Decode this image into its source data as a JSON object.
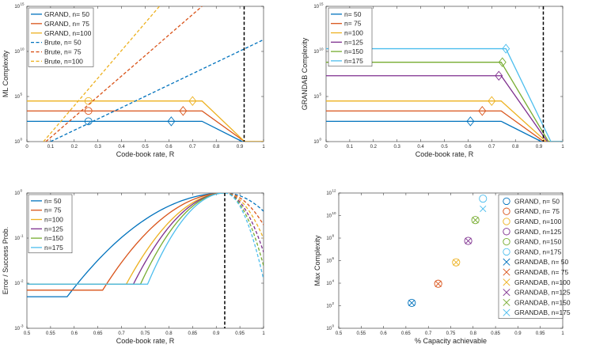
{
  "chart_data": [
    {
      "type": "line",
      "id": "ml",
      "xlabel": "Code-book rate, R",
      "ylabel": "ML Complexity",
      "xlim": [
        0,
        1
      ],
      "ylim_log10": [
        0,
        15
      ],
      "x_ticks": [
        0,
        0.1,
        0.2,
        0.3,
        0.4,
        0.5,
        0.6,
        0.7,
        0.8,
        0.9,
        1
      ],
      "x_tick_labels": [
        "0",
        "0.1",
        "0.2",
        "0.3",
        "0.4",
        "0.5",
        "0.6",
        "0.7",
        "0.8",
        "0.9",
        "1"
      ],
      "y_ticks_log10": [
        0,
        5,
        10,
        15
      ],
      "y_tick_labels": [
        "10",
        "10",
        "10",
        "10"
      ],
      "y_tick_exps": [
        "0",
        "5",
        "10",
        "15"
      ],
      "capacity_x": 0.918,
      "series": [
        {
          "name": "GRAND, n= 50",
          "color": "#0072bd",
          "dash": false,
          "x": [
            0,
            0.74,
            0.91,
            1
          ],
          "y_log10": [
            2.25,
            2.25,
            0,
            0
          ],
          "markers": [
            {
              "shape": "circle",
              "x": 0.26,
              "y_log10": 2.25
            },
            {
              "shape": "diamond",
              "x": 0.61,
              "y_log10": 2.25
            }
          ]
        },
        {
          "name": "GRAND, n= 75",
          "color": "#d95319",
          "dash": false,
          "x": [
            0,
            0.74,
            0.92,
            1
          ],
          "y_log10": [
            3.4,
            3.4,
            0,
            0
          ],
          "markers": [
            {
              "shape": "circle",
              "x": 0.26,
              "y_log10": 3.4
            },
            {
              "shape": "diamond",
              "x": 0.66,
              "y_log10": 3.4
            }
          ]
        },
        {
          "name": "GRAND, n=100",
          "color": "#edb120",
          "dash": false,
          "x": [
            0,
            0.74,
            0.92,
            1
          ],
          "y_log10": [
            4.5,
            4.5,
            0,
            0
          ],
          "markers": [
            {
              "shape": "circle",
              "x": 0.26,
              "y_log10": 4.5
            },
            {
              "shape": "diamond",
              "x": 0.7,
              "y_log10": 4.5
            }
          ]
        },
        {
          "name": "Brute, n= 50",
          "color": "#0072bd",
          "dash": true,
          "x": [
            0.1,
            1
          ],
          "y_log10": [
            0,
            11.3
          ]
        },
        {
          "name": "Brute, n= 75",
          "color": "#d95319",
          "dash": true,
          "x": [
            0.08,
            0.74
          ],
          "y_log10": [
            0,
            15
          ]
        },
        {
          "name": "Brute, n=100",
          "color": "#edb120",
          "dash": true,
          "x": [
            0.07,
            0.56
          ],
          "y_log10": [
            0,
            15
          ]
        }
      ]
    },
    {
      "type": "line",
      "id": "grandab",
      "xlabel": "Code-book rate, R",
      "ylabel": "GRANDAB Complexity",
      "xlim": [
        0,
        1
      ],
      "ylim_log10": [
        0,
        15
      ],
      "x_ticks": [
        0,
        0.1,
        0.2,
        0.3,
        0.4,
        0.5,
        0.6,
        0.7,
        0.8,
        0.9,
        1
      ],
      "x_tick_labels": [
        "0",
        "0.1",
        "0.2",
        "0.3",
        "0.4",
        "0.5",
        "0.6",
        "0.7",
        "0.8",
        "0.9",
        "1"
      ],
      "y_ticks_log10": [
        0,
        5,
        10,
        15
      ],
      "y_tick_labels": [
        "10",
        "10",
        "10",
        "10"
      ],
      "y_tick_exps": [
        "0",
        "5",
        "10",
        "15"
      ],
      "capacity_x": 0.918,
      "series": [
        {
          "name": "n= 50",
          "color": "#0072bd",
          "dash": false,
          "x": [
            0,
            0.74,
            0.91,
            1
          ],
          "y_log10": [
            2.25,
            2.25,
            0,
            0
          ],
          "markers": [
            {
              "shape": "diamond",
              "x": 0.61,
              "y_log10": 2.25
            }
          ]
        },
        {
          "name": "n= 75",
          "color": "#d95319",
          "dash": false,
          "x": [
            0,
            0.74,
            0.92,
            1
          ],
          "y_log10": [
            3.4,
            3.4,
            0,
            0
          ],
          "markers": [
            {
              "shape": "diamond",
              "x": 0.66,
              "y_log10": 3.4
            }
          ]
        },
        {
          "name": "n=100",
          "color": "#edb120",
          "dash": false,
          "x": [
            0,
            0.74,
            0.93,
            1
          ],
          "y_log10": [
            4.5,
            4.5,
            0,
            0
          ],
          "markers": [
            {
              "shape": "diamond",
              "x": 0.7,
              "y_log10": 4.5
            }
          ]
        },
        {
          "name": "n=125",
          "color": "#7e2f8e",
          "dash": false,
          "x": [
            0,
            0.74,
            0.935,
            1
          ],
          "y_log10": [
            7.3,
            7.3,
            0,
            0
          ],
          "markers": [
            {
              "shape": "diamond",
              "x": 0.73,
              "y_log10": 7.3
            }
          ]
        },
        {
          "name": "n=150",
          "color": "#77ac30",
          "dash": false,
          "x": [
            0,
            0.74,
            0.94,
            1
          ],
          "y_log10": [
            8.8,
            8.8,
            0,
            0
          ],
          "markers": [
            {
              "shape": "diamond",
              "x": 0.745,
              "y_log10": 8.8
            }
          ]
        },
        {
          "name": "n=175",
          "color": "#4dbeee",
          "dash": false,
          "x": [
            0,
            0.76,
            0.95,
            1
          ],
          "y_log10": [
            10.3,
            10.3,
            0,
            0
          ],
          "markers": [
            {
              "shape": "diamond",
              "x": 0.76,
              "y_log10": 10.3
            }
          ]
        }
      ]
    },
    {
      "type": "line",
      "id": "error",
      "xlabel": "Code-book rate, R",
      "ylabel": "Error / Success Prob.",
      "xlim": [
        0.5,
        1
      ],
      "ylim_log10": [
        -3,
        0
      ],
      "x_ticks": [
        0.5,
        0.55,
        0.6,
        0.65,
        0.7,
        0.75,
        0.8,
        0.85,
        0.9,
        0.95,
        1
      ],
      "x_tick_labels": [
        "0.5",
        "0.55",
        "0.6",
        "0.65",
        "0.7",
        "0.75",
        "0.8",
        "0.85",
        "0.9",
        "0.95",
        "1"
      ],
      "y_ticks_log10": [
        -3,
        -2,
        -1,
        0
      ],
      "y_tick_labels": [
        "10",
        "10",
        "10",
        "10"
      ],
      "y_tick_exps": [
        "-3",
        "-2",
        "-1",
        "0"
      ],
      "capacity_x": 0.918,
      "series": [
        {
          "name": "n= 50",
          "color": "#0072bd",
          "floor": 0.005,
          "start": 0.585
        },
        {
          "name": "n= 75",
          "color": "#d95319",
          "floor": 0.007,
          "start": 0.66
        },
        {
          "name": "n=100",
          "color": "#edb120",
          "floor": 0.0095,
          "start": 0.71
        },
        {
          "name": "n=125",
          "color": "#7e2f8e",
          "floor": 0.0095,
          "start": 0.725
        },
        {
          "name": "n=150",
          "color": "#77ac30",
          "floor": 0.0095,
          "start": 0.74
        },
        {
          "name": "n=175",
          "color": "#4dbeee",
          "floor": 0.0095,
          "start": 0.755
        }
      ]
    },
    {
      "type": "scatter",
      "id": "maxcomplexity",
      "xlabel": "% Capacity achievable",
      "ylabel": "Max Complexity",
      "xlim": [
        0.5,
        1
      ],
      "ylim_log10": [
        0,
        12
      ],
      "x_ticks": [
        0.5,
        0.55,
        0.6,
        0.65,
        0.7,
        0.75,
        0.8,
        0.85,
        0.9,
        0.95,
        1
      ],
      "x_tick_labels": [
        "0.5",
        "0.55",
        "0.6",
        "0.65",
        "0.7",
        "0.75",
        "0.8",
        "0.85",
        "0.9",
        "0.95",
        "1"
      ],
      "y_ticks_log10": [
        0,
        2,
        4,
        6,
        8,
        10,
        12
      ],
      "y_tick_labels": [
        "10",
        "10",
        "10",
        "10",
        "10",
        "10",
        "10"
      ],
      "y_tick_exps": [
        "0",
        "2",
        "4",
        "6",
        "8",
        "10",
        "12"
      ],
      "series": [
        {
          "name": "GRAND, n= 50",
          "color": "#0072bd",
          "marker": "circle",
          "x": 0.663,
          "y_log10": 2.25
        },
        {
          "name": "GRAND, n= 75",
          "color": "#d95319",
          "marker": "circle",
          "x": 0.722,
          "y_log10": 3.95
        },
        {
          "name": "GRAND, n=100",
          "color": "#edb120",
          "marker": "circle",
          "x": 0.762,
          "y_log10": 5.85
        },
        {
          "name": "GRAND, n=125",
          "color": "#7e2f8e",
          "marker": "circle",
          "x": 0.789,
          "y_log10": 7.75
        },
        {
          "name": "GRAND, n=150",
          "color": "#77ac30",
          "marker": "circle",
          "x": 0.805,
          "y_log10": 9.6
        },
        {
          "name": "GRAND, n=175",
          "color": "#4dbeee",
          "marker": "circle",
          "x": 0.822,
          "y_log10": 11.5
        },
        {
          "name": "GRANDAB, n= 50",
          "color": "#0072bd",
          "marker": "x",
          "x": 0.663,
          "y_log10": 2.25
        },
        {
          "name": "GRANDAB, n= 75",
          "color": "#d95319",
          "marker": "x",
          "x": 0.722,
          "y_log10": 3.95
        },
        {
          "name": "GRANDAB, n=100",
          "color": "#edb120",
          "marker": "x",
          "x": 0.762,
          "y_log10": 5.85
        },
        {
          "name": "GRANDAB, n=125",
          "color": "#7e2f8e",
          "marker": "x",
          "x": 0.789,
          "y_log10": 7.75
        },
        {
          "name": "GRANDAB, n=150",
          "color": "#77ac30",
          "marker": "x",
          "x": 0.805,
          "y_log10": 9.6
        },
        {
          "name": "GRANDAB, n=175",
          "color": "#4dbeee",
          "marker": "x",
          "x": 0.822,
          "y_log10": 10.6
        }
      ]
    }
  ]
}
